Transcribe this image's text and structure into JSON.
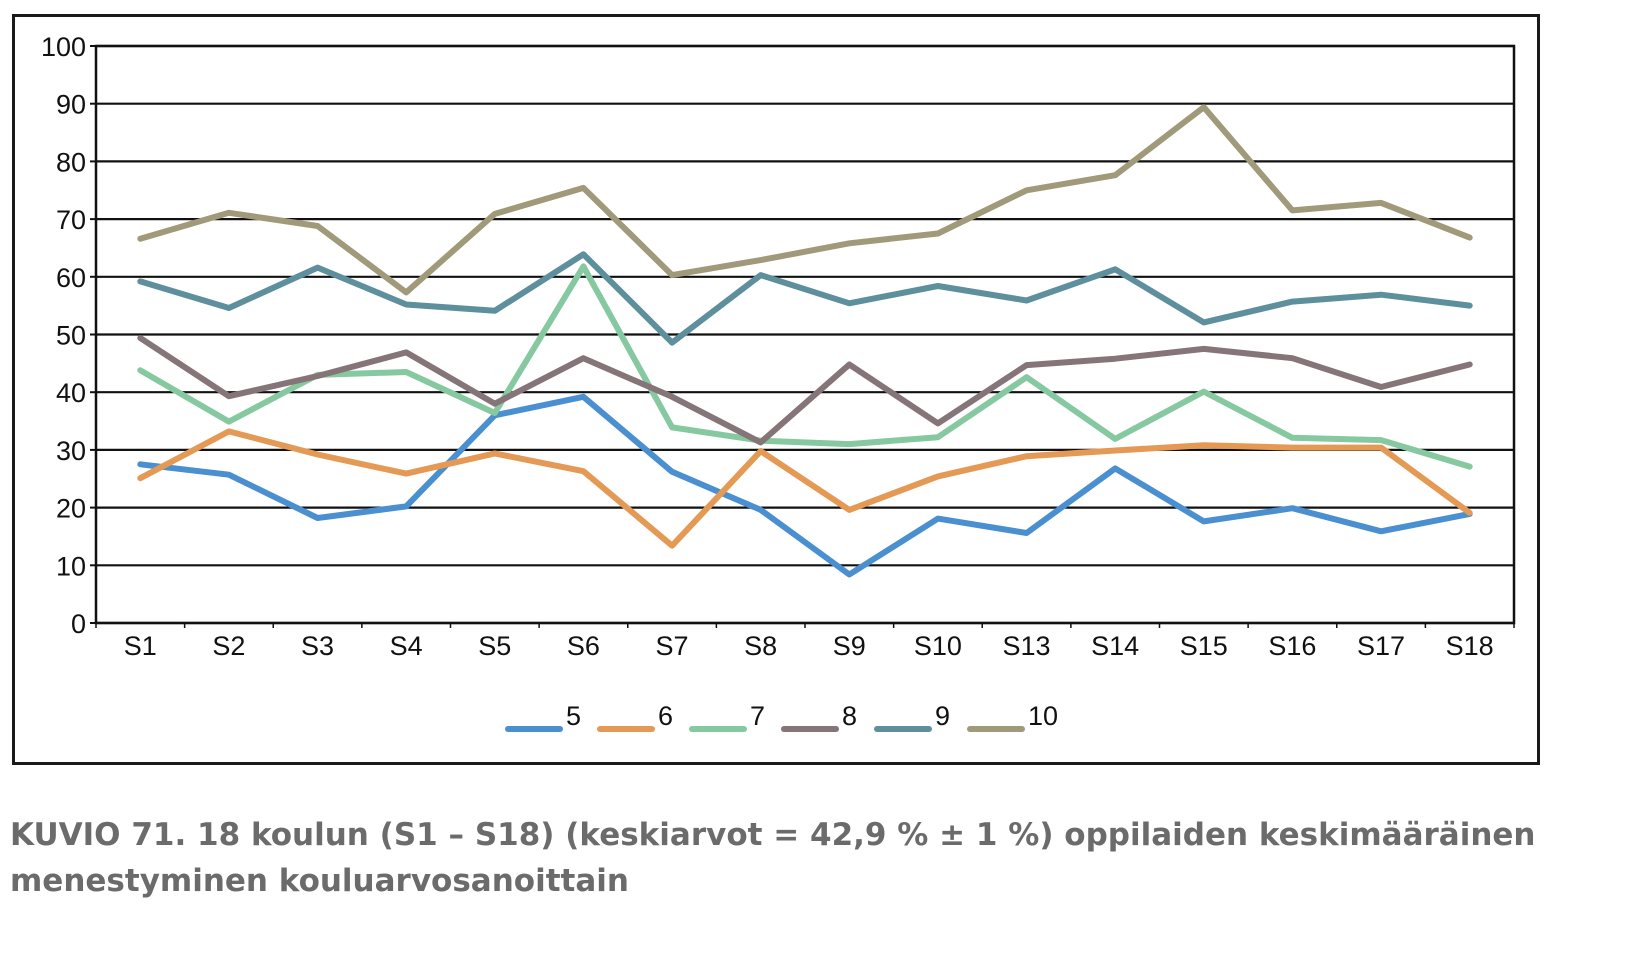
{
  "chart_data": {
    "type": "line",
    "categories": [
      "S1",
      "S2",
      "S3",
      "S4",
      "S5",
      "S6",
      "S7",
      "S8",
      "S9",
      "S10",
      "S13",
      "S14",
      "S15",
      "S16",
      "S17",
      "S18"
    ],
    "ylim": [
      0,
      100
    ],
    "yticks": [
      0,
      10,
      20,
      30,
      40,
      50,
      60,
      70,
      80,
      90,
      100
    ],
    "grid": "horizontal",
    "legend": "bottom",
    "series": [
      {
        "name": "5",
        "color": "#4a8fd0",
        "values": [
          27.5,
          25.7,
          18.2,
          20.2,
          36.0,
          39.2,
          26.2,
          19.6,
          8.4,
          18.1,
          15.6,
          26.8,
          17.6,
          19.9,
          15.9,
          18.9
        ]
      },
      {
        "name": "6",
        "color": "#e49a55",
        "values": [
          25.1,
          33.2,
          29.2,
          25.9,
          29.4,
          26.3,
          13.4,
          29.8,
          19.6,
          25.4,
          28.9,
          29.9,
          30.8,
          30.4,
          30.4,
          19.1
        ]
      },
      {
        "name": "7",
        "color": "#86c9a0",
        "values": [
          43.8,
          34.9,
          43.0,
          43.5,
          36.4,
          61.8,
          33.9,
          31.6,
          31.0,
          32.2,
          42.6,
          31.9,
          40.1,
          32.1,
          31.7,
          27.1
        ]
      },
      {
        "name": "8",
        "color": "#857478",
        "values": [
          49.4,
          39.3,
          42.8,
          46.9,
          38.0,
          45.9,
          39.2,
          31.3,
          44.8,
          34.6,
          44.7,
          45.8,
          47.5,
          45.9,
          40.9,
          44.8
        ]
      },
      {
        "name": "9",
        "color": "#5e8f9c",
        "values": [
          59.2,
          54.6,
          61.6,
          55.2,
          54.1,
          63.9,
          48.6,
          60.3,
          55.4,
          58.4,
          55.9,
          61.3,
          52.1,
          55.7,
          56.9,
          55.0
        ]
      },
      {
        "name": "10",
        "color": "#a09a7a",
        "values": [
          66.6,
          71.1,
          68.8,
          57.3,
          70.9,
          75.4,
          60.3,
          62.9,
          65.8,
          67.5,
          75.0,
          77.6,
          89.4,
          71.5,
          72.8,
          66.8
        ]
      }
    ]
  },
  "caption": {
    "line1": "KUVIO 71. 18 koulun (S1 – S18) (keskiarvot = 42,9 % ± 1 %) oppilaiden keskimääräinen",
    "line2": "menestyminen kouluarvosanoittain"
  }
}
